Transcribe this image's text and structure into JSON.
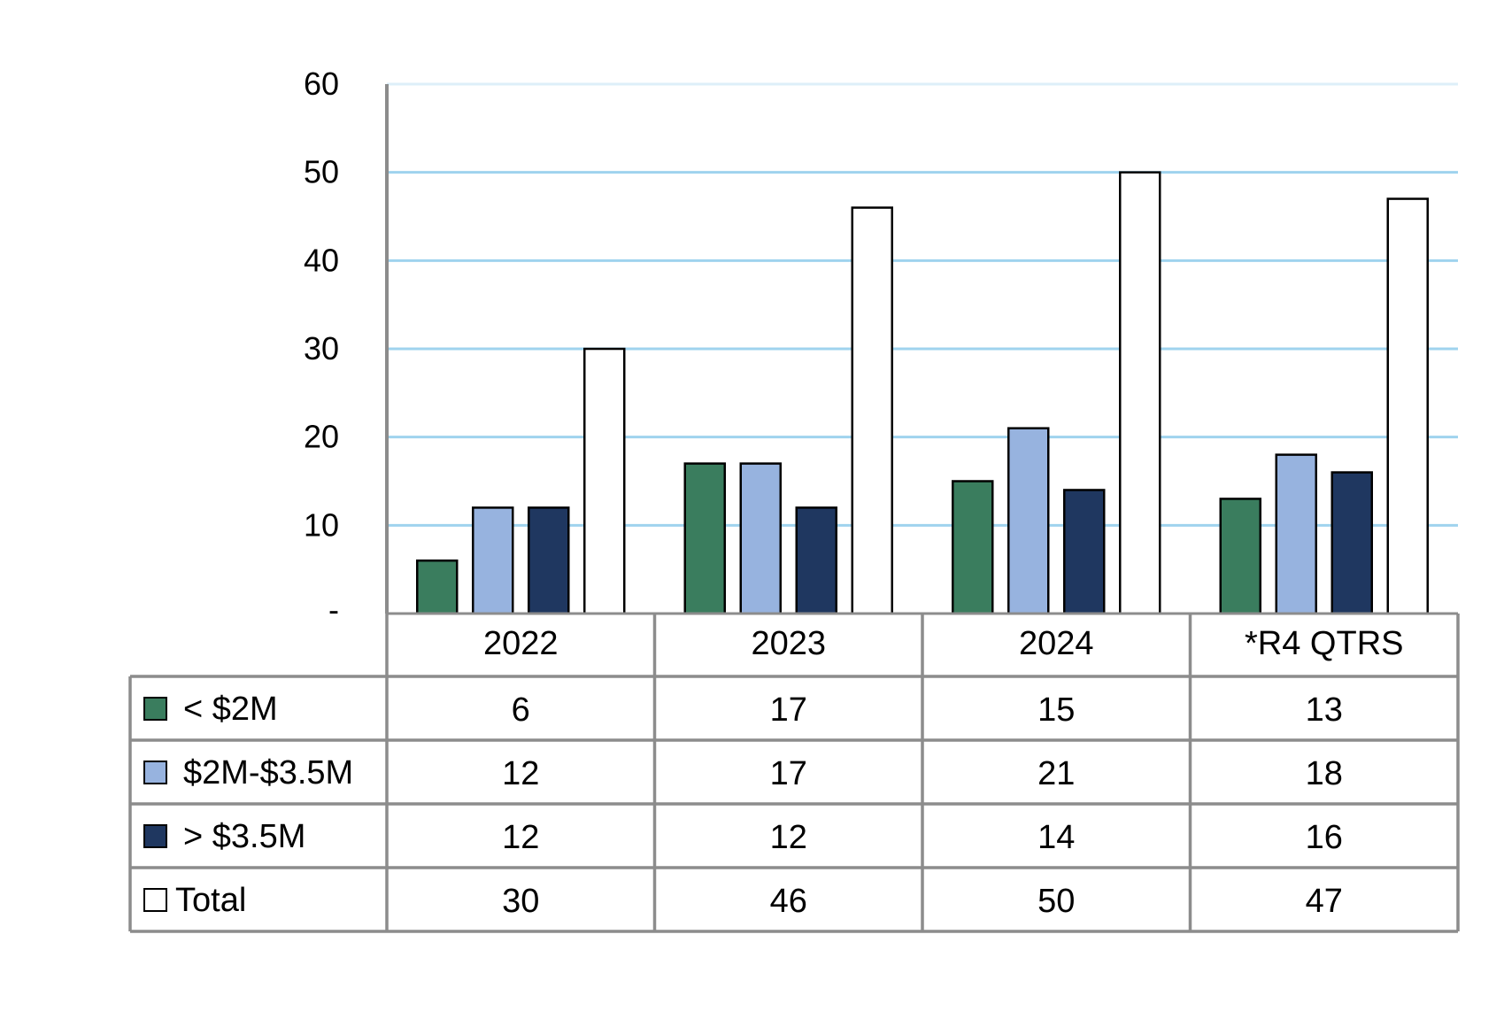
{
  "chart_data": {
    "type": "bar",
    "categories": [
      "2022",
      "2023",
      "2024",
      "*R4 QTRS"
    ],
    "series": [
      {
        "name": "< $2M",
        "values": [
          6,
          17,
          15,
          13
        ],
        "color": "#3a7d5e",
        "legend_marker": "< $2M"
      },
      {
        "name": "$2M-$3.5M",
        "values": [
          12,
          17,
          21,
          18
        ],
        "color": "#97b3df",
        "legend_marker": "$2M-$3.5M"
      },
      {
        "name": "> $3.5M",
        "values": [
          12,
          12,
          14,
          16
        ],
        "color": "#1f3760",
        "legend_marker": "> $3.5M"
      },
      {
        "name": "Total",
        "values": [
          30,
          46,
          50,
          47
        ],
        "color": "#ffffff",
        "legend_marker": "Total"
      }
    ],
    "ylim": [
      0,
      60
    ],
    "yticks": [
      0,
      10,
      20,
      30,
      40,
      50,
      60
    ],
    "ytick_labels": [
      "-",
      "10",
      "20",
      "30",
      "40",
      "50",
      "60"
    ],
    "grid": true,
    "legend": "data-table",
    "title": "",
    "xlabel": "",
    "ylabel": "",
    "colors": {
      "gridline": "#9fd3ee",
      "axis": "#8c8c8c",
      "bar_outline": "#000000"
    }
  }
}
